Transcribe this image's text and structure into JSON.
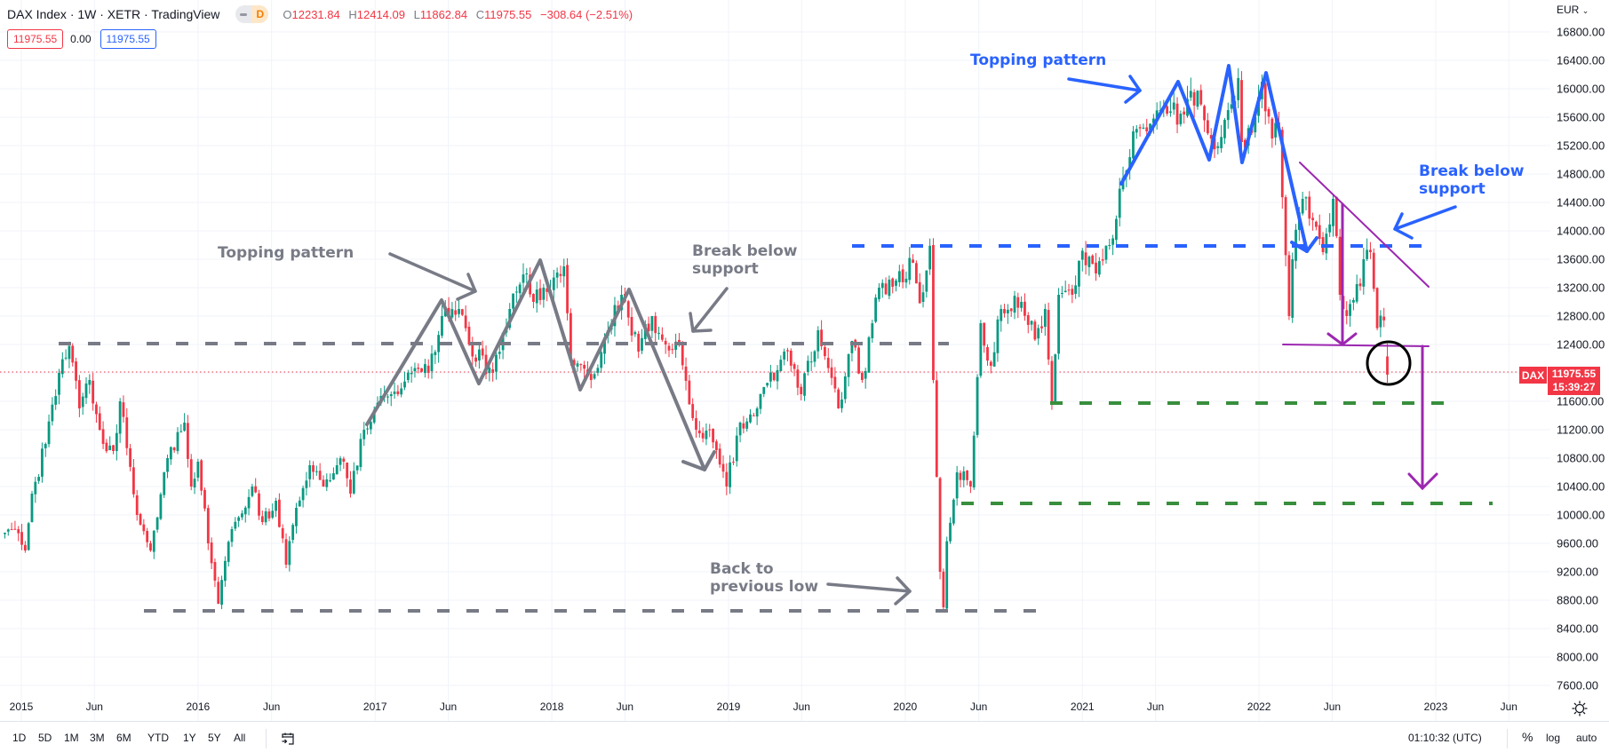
{
  "header": {
    "title": "DAX Index · 1W · XETR · TradingView",
    "badge_letter": "D",
    "ohlc": {
      "o_label": "O",
      "o": "12231.84",
      "h_label": "H",
      "h": "12414.09",
      "l_label": "L",
      "l": "11862.84",
      "c_label": "C",
      "c": "11975.55",
      "change": "−308.64 (−2.51%)"
    },
    "quote": {
      "bid": "11975.55",
      "spread": "0.00",
      "ask": "11975.55"
    }
  },
  "price_axis": {
    "currency": "EUR",
    "labels": [
      "16800.00",
      "16400.00",
      "16000.00",
      "15600.00",
      "15200.00",
      "14800.00",
      "14400.00",
      "14000.00",
      "13600.00",
      "13200.00",
      "12800.00",
      "12400.00",
      "11600.00",
      "11200.00",
      "10800.00",
      "10400.00",
      "10000.00",
      "9600.00",
      "9200.00",
      "8800.00",
      "8400.00",
      "8000.00",
      "7600.00"
    ]
  },
  "last_price": {
    "symbol": "DAX",
    "price": "11975.55",
    "countdown": "15:39:27"
  },
  "time_axis": {
    "labels": [
      {
        "text": "2015",
        "date": "2015-01-01"
      },
      {
        "text": "Jun",
        "date": "2015-06-01"
      },
      {
        "text": "2016",
        "date": "2016-01-01"
      },
      {
        "text": "Jun",
        "date": "2016-06-01"
      },
      {
        "text": "2017",
        "date": "2017-01-01"
      },
      {
        "text": "Jun",
        "date": "2017-06-01"
      },
      {
        "text": "2018",
        "date": "2018-01-01"
      },
      {
        "text": "Jun",
        "date": "2018-06-01"
      },
      {
        "text": "2019",
        "date": "2019-01-01"
      },
      {
        "text": "Jun",
        "date": "2019-06-01"
      },
      {
        "text": "2020",
        "date": "2020-01-01"
      },
      {
        "text": "Jun",
        "date": "2020-06-01"
      },
      {
        "text": "2021",
        "date": "2021-01-01"
      },
      {
        "text": "Jun",
        "date": "2021-06-01"
      },
      {
        "text": "2022",
        "date": "2022-01-01"
      },
      {
        "text": "Jun",
        "date": "2022-06-01"
      },
      {
        "text": "2023",
        "date": "2023-01-01"
      },
      {
        "text": "Jun",
        "date": "2023-06-01"
      }
    ]
  },
  "annotations": {
    "gray_topping": "Topping pattern",
    "gray_break_1": "Break below",
    "gray_break_2": "support",
    "gray_back_1": "Back to",
    "gray_back_2": "previous low",
    "blue_topping": "Topping pattern",
    "blue_break_1": "Break below",
    "blue_break_2": "support"
  },
  "bottom_toolbar": {
    "ranges": [
      "1D",
      "5D",
      "1M",
      "3M",
      "6M",
      "YTD",
      "1Y",
      "5Y",
      "All"
    ],
    "clock": "01:10:32 (UTC)",
    "percent": "%",
    "log": "log",
    "auto": "auto"
  },
  "colors": {
    "up": "#089981",
    "down": "#f23645",
    "grid": "#f0f3fa",
    "annotation_gray": "#787b86",
    "annotation_blue": "#2962ff",
    "annotation_purple": "#9c27b0",
    "annotation_green": "#388e3c"
  },
  "chart_data": {
    "type": "candlestick",
    "symbol": "DAX Index",
    "interval": "1W",
    "ylim": [
      7600,
      16800
    ],
    "grid": true,
    "approx_weekly_close": [
      [
        "2014-11-28",
        9750
      ],
      [
        "2014-12-19",
        9800
      ],
      [
        "2015-01-09",
        9500
      ],
      [
        "2015-01-23",
        10300
      ],
      [
        "2015-02-20",
        11000
      ],
      [
        "2015-03-20",
        12000
      ],
      [
        "2015-04-10",
        12380
      ],
      [
        "2015-05-01",
        11500
      ],
      [
        "2015-05-22",
        11900
      ],
      [
        "2015-06-19",
        11000
      ],
      [
        "2015-07-10",
        10900
      ],
      [
        "2015-07-24",
        11600
      ],
      [
        "2015-08-28",
        10000
      ],
      [
        "2015-09-25",
        9500
      ],
      [
        "2015-10-30",
        10800
      ],
      [
        "2015-12-04",
        11300
      ],
      [
        "2015-12-18",
        10400
      ],
      [
        "2016-01-01",
        10750
      ],
      [
        "2016-01-22",
        9600
      ],
      [
        "2016-02-12",
        8750
      ],
      [
        "2016-03-11",
        9800
      ],
      [
        "2016-04-22",
        10400
      ],
      [
        "2016-05-13",
        9900
      ],
      [
        "2016-06-10",
        10200
      ],
      [
        "2016-07-01",
        9300
      ],
      [
        "2016-07-22",
        10100
      ],
      [
        "2016-08-19",
        10700
      ],
      [
        "2016-09-16",
        10400
      ],
      [
        "2016-10-28",
        10750
      ],
      [
        "2016-11-11",
        10300
      ],
      [
        "2016-12-09",
        11200
      ],
      [
        "2016-12-30",
        11480
      ],
      [
        "2017-02-03",
        11700
      ],
      [
        "2017-03-17",
        12000
      ],
      [
        "2017-04-21",
        12000
      ],
      [
        "2017-05-19",
        12800
      ],
      [
        "2017-06-23",
        12900
      ],
      [
        "2017-07-14",
        12400
      ],
      [
        "2017-09-01",
        12000
      ],
      [
        "2017-10-06",
        12900
      ],
      [
        "2017-11-10",
        13400
      ],
      [
        "2017-11-24",
        13000
      ],
      [
        "2017-12-15",
        13200
      ],
      [
        "2018-01-26",
        13500
      ],
      [
        "2018-02-09",
        12200
      ],
      [
        "2018-03-23",
        11900
      ],
      [
        "2018-04-27",
        12600
      ],
      [
        "2018-05-25",
        13100
      ],
      [
        "2018-06-29",
        12300
      ],
      [
        "2018-07-27",
        12800
      ],
      [
        "2018-08-24",
        12400
      ],
      [
        "2018-09-21",
        12400
      ],
      [
        "2018-10-26",
        11200
      ],
      [
        "2018-11-23",
        11200
      ],
      [
        "2018-12-28",
        10400
      ],
      [
        "2019-01-25",
        11300
      ],
      [
        "2019-03-01",
        11500
      ],
      [
        "2019-04-26",
        12300
      ],
      [
        "2019-05-31",
        11700
      ],
      [
        "2019-07-05",
        12600
      ],
      [
        "2019-08-16",
        11500
      ],
      [
        "2019-09-13",
        12450
      ],
      [
        "2019-10-04",
        11900
      ],
      [
        "2019-11-08",
        13200
      ],
      [
        "2019-12-13",
        13300
      ],
      [
        "2020-01-17",
        13550
      ],
      [
        "2020-01-31",
        12980
      ],
      [
        "2020-02-21",
        13790
      ],
      [
        "2020-02-28",
        11900
      ],
      [
        "2020-03-13",
        9200
      ],
      [
        "2020-03-20",
        8700
      ],
      [
        "2020-03-27",
        9630
      ],
      [
        "2020-04-17",
        10600
      ],
      [
        "2020-05-15",
        10400
      ],
      [
        "2020-06-05",
        12700
      ],
      [
        "2020-06-26",
        12100
      ],
      [
        "2020-07-17",
        12900
      ],
      [
        "2020-08-28",
        13000
      ],
      [
        "2020-09-25",
        12470
      ],
      [
        "2020-10-16",
        12900
      ],
      [
        "2020-10-30",
        11560
      ],
      [
        "2020-11-13",
        13100
      ],
      [
        "2020-12-11",
        13100
      ],
      [
        "2021-01-01",
        13720
      ],
      [
        "2021-01-29",
        13400
      ],
      [
        "2021-02-26",
        13800
      ],
      [
        "2021-03-26",
        14750
      ],
      [
        "2021-04-16",
        15400
      ],
      [
        "2021-05-14",
        15400
      ],
      [
        "2021-06-11",
        15700
      ],
      [
        "2021-07-23",
        15650
      ],
      [
        "2021-08-13",
        15970
      ],
      [
        "2021-09-03",
        15780
      ],
      [
        "2021-10-01",
        15150
      ],
      [
        "2021-10-29",
        15700
      ],
      [
        "2021-11-19",
        16150
      ],
      [
        "2021-11-26",
        15250
      ],
      [
        "2021-12-03",
        15170
      ],
      [
        "2021-12-31",
        15885
      ],
      [
        "2022-01-07",
        16100
      ],
      [
        "2022-01-28",
        15300
      ],
      [
        "2022-02-11",
        15400
      ],
      [
        "2022-03-04",
        12800
      ],
      [
        "2022-03-11",
        13600
      ],
      [
        "2022-04-01",
        14450
      ],
      [
        "2022-04-22",
        14150
      ],
      [
        "2022-05-13",
        13700
      ],
      [
        "2022-06-03",
        14450
      ],
      [
        "2022-06-17",
        13100
      ],
      [
        "2022-07-01",
        12800
      ],
      [
        "2022-07-22",
        13250
      ],
      [
        "2022-08-19",
        13700
      ],
      [
        "2022-09-02",
        12630
      ],
      [
        "2022-09-16",
        12740
      ],
      [
        "2022-09-23",
        11975.55
      ]
    ],
    "last_candle": {
      "open": 12231.84,
      "high": 12414.09,
      "low": 11862.84,
      "close": 11975.55
    }
  }
}
